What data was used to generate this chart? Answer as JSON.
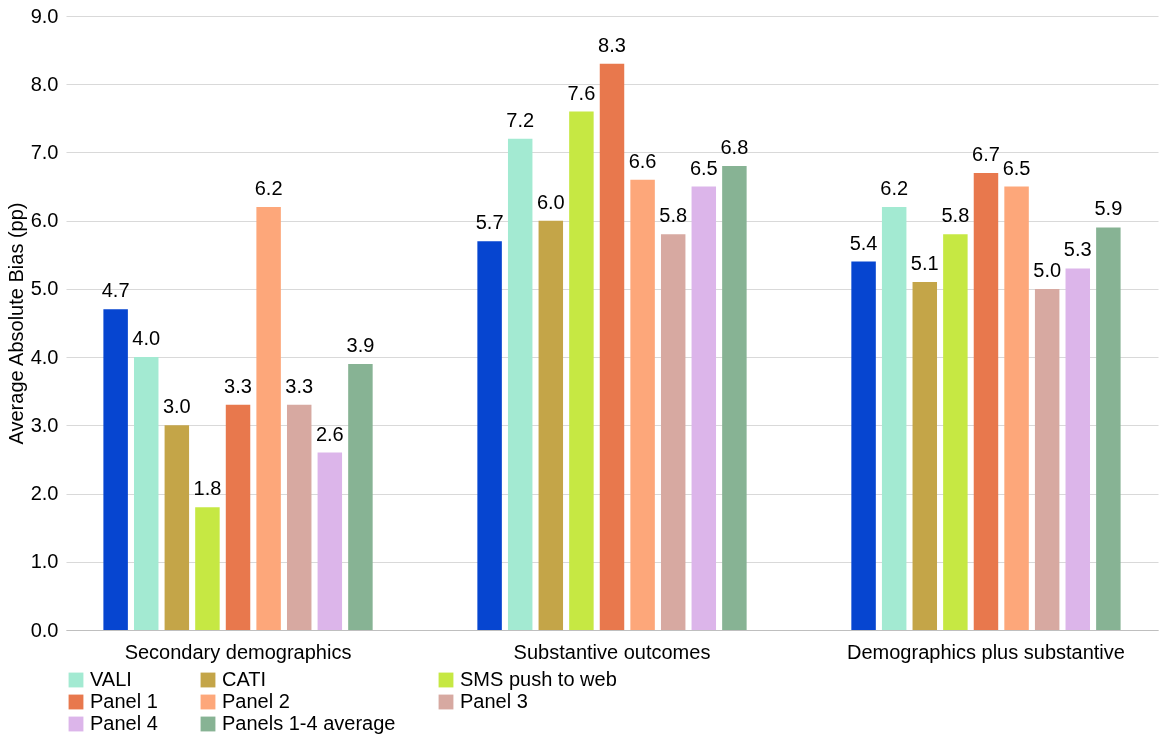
{
  "chart_data": {
    "type": "bar",
    "ylabel": "Average Absolute Bias (pp)",
    "categories": [
      "Secondary demographics",
      "Substantive outcomes",
      "Demographics plus substantive"
    ],
    "series": [
      {
        "color": "#0645d0",
        "values": [
          4.7,
          5.7,
          5.4
        ],
        "value_labels": [
          "4.7",
          "5.7",
          "5.4"
        ]
      },
      {
        "name": "VALI",
        "color": "#a3ead2",
        "values": [
          4.0,
          7.2,
          6.2
        ],
        "value_labels": [
          "4.0",
          "7.2",
          "6.2"
        ]
      },
      {
        "name": "CATI",
        "color": "#c4a548",
        "values": [
          3.0,
          6.0,
          5.1
        ],
        "value_labels": [
          "3.0",
          "6.0",
          "5.1"
        ]
      },
      {
        "name": "SMS push to web",
        "color": "#c6e843",
        "values": [
          1.8,
          7.6,
          5.8
        ],
        "value_labels": [
          "1.8",
          "7.6",
          "5.8"
        ]
      },
      {
        "name": "Panel 1",
        "color": "#e8784d",
        "values": [
          3.3,
          8.3,
          6.7
        ],
        "value_labels": [
          "3.3",
          "8.3",
          "6.7"
        ]
      },
      {
        "name": "Panel 2",
        "color": "#fda77a",
        "values": [
          6.2,
          6.6,
          6.5
        ],
        "value_labels": [
          "6.2",
          "6.6",
          "6.5"
        ]
      },
      {
        "name": "Panel 3",
        "color": "#d7a9a1",
        "values": [
          3.3,
          5.8,
          5.0
        ],
        "value_labels": [
          "3.3",
          "5.8",
          "5.0"
        ]
      },
      {
        "name": "Panel 4",
        "color": "#dcb5ea",
        "values": [
          2.6,
          6.5,
          5.3
        ],
        "value_labels": [
          "2.6",
          "6.5",
          "5.3"
        ]
      },
      {
        "name": "Panels 1-4 average",
        "color": "#87b394",
        "values": [
          3.9,
          6.8,
          5.9
        ],
        "value_labels": [
          "3.9",
          "6.8",
          "5.9"
        ]
      }
    ],
    "ylim": [
      0,
      9
    ],
    "yticks": [
      {
        "value": 0,
        "label": "0.0"
      },
      {
        "value": 1,
        "label": "1.0"
      },
      {
        "value": 2,
        "label": "2.0"
      },
      {
        "value": 3,
        "label": "3.0"
      },
      {
        "value": 4,
        "label": "4.0"
      },
      {
        "value": 5,
        "label": "5.0"
      },
      {
        "value": 6,
        "label": "6.0"
      },
      {
        "value": 7,
        "label": "7.0"
      },
      {
        "value": 8,
        "label": "8.0"
      },
      {
        "value": 9,
        "label": "9.0"
      }
    ],
    "grid": "y",
    "legend": "bottom"
  }
}
